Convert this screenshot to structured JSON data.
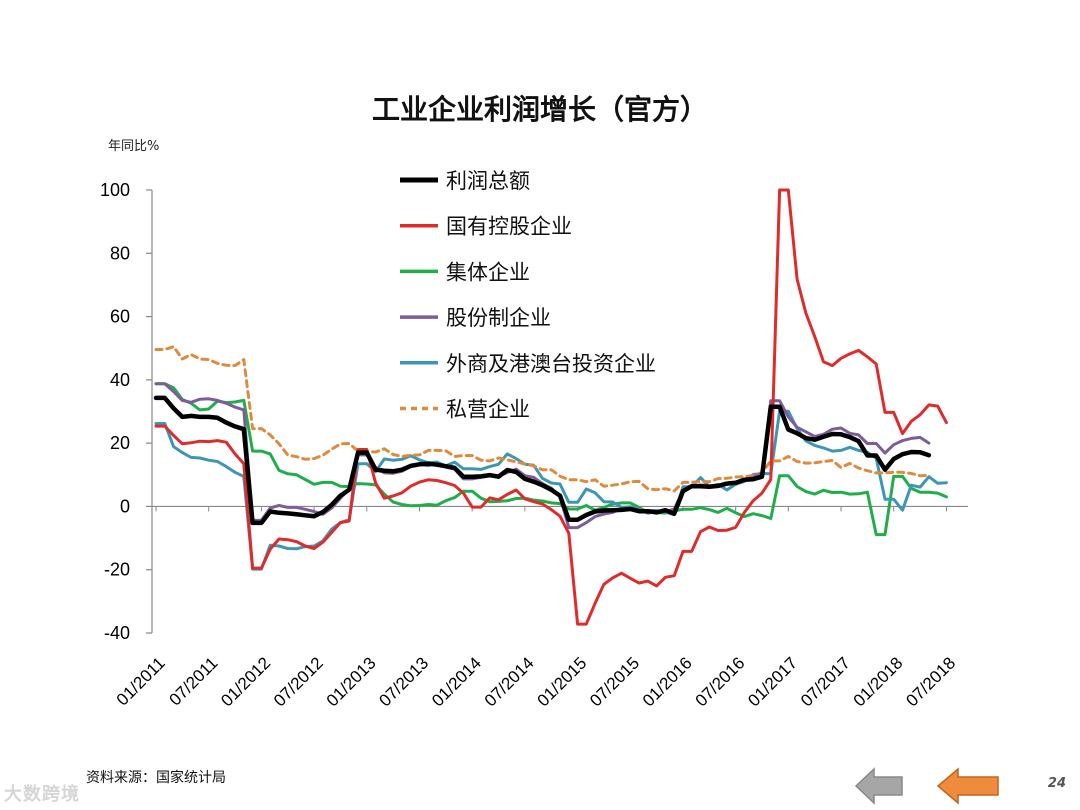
{
  "title": "工业企业利润增长（官方）",
  "unit_label": "年同比%",
  "source": "资料来源：国家统计局",
  "watermark": "大数跨境",
  "page_number": "24",
  "chart_data": {
    "type": "line",
    "title": "工业企业利润增长（官方）",
    "ylabel": "年同比%",
    "ylim": [
      -40,
      100
    ],
    "yticks": [
      -40,
      -20,
      0,
      20,
      40,
      60,
      80,
      100
    ],
    "x_labels": [
      "01/2011",
      "07/2011",
      "01/2012",
      "07/2012",
      "01/2013",
      "07/2013",
      "01/2014",
      "07/2014",
      "01/2015",
      "07/2015",
      "01/2016",
      "07/2016",
      "01/2017",
      "07/2017",
      "01/2018",
      "07/2018"
    ],
    "x_start": "01/2011",
    "x_end": "10/2018",
    "grid": false,
    "legend_position": "top-center",
    "series": [
      {
        "name": "利润总额",
        "color": "#000000",
        "dash": false,
        "values": [
          34.3,
          34.3,
          31,
          28.3,
          28.6,
          28.3,
          28.3,
          28,
          26.5,
          25.3,
          24.4,
          -5.2,
          -5.2,
          -1.6,
          -2,
          -2.2,
          -2.5,
          -2.8,
          -3.1,
          -1.8,
          0.5,
          3.4,
          5.3,
          17,
          17,
          11.6,
          11.3,
          11.1,
          11.6,
          12.8,
          13.3,
          13.5,
          13.2,
          12.7,
          12.2,
          9.4,
          9.4,
          9.5,
          9.9,
          9.4,
          11.5,
          10.9,
          8.7,
          7.8,
          6.7,
          5.3,
          3.4,
          -4.2,
          -4.2,
          -2.7,
          -1.6,
          -1.3,
          -1.2,
          -1.1,
          -0.8,
          -1.5,
          -1.5,
          -1.9,
          -1.2,
          -2.3,
          4.8,
          6.4,
          6.4,
          6.2,
          6.5,
          7.2,
          7.5,
          8.4,
          8.6,
          9.4,
          31.5,
          31.5,
          24.3,
          23.1,
          21.6,
          21.1,
          22,
          22.9,
          22.8,
          21.9,
          20.6,
          16.1,
          16.1,
          11.6,
          15,
          16.5,
          17.2,
          17.1,
          16.2
        ]
      },
      {
        "name": "国有控股企业",
        "color": "#e02b2b",
        "dash": false,
        "values": [
          25.4,
          25.4,
          22.4,
          19.8,
          20.1,
          20.6,
          20.5,
          20.8,
          20.3,
          16.6,
          13.5,
          -19.5,
          -19.5,
          -13.5,
          -10.3,
          -10.5,
          -11.1,
          -12.5,
          -13.3,
          -11.3,
          -8.2,
          -5.1,
          -4.6,
          18,
          18,
          7.4,
          2.6,
          3.3,
          4.3,
          6.4,
          7.7,
          8.4,
          8.2,
          7.5,
          6.6,
          4.2,
          -0.2,
          -0.2,
          2.7,
          2.1,
          3.8,
          5.2,
          2.4,
          1.5,
          0.8,
          -1,
          -3.1,
          -8.5,
          -37.2,
          -37.2,
          -30.6,
          -24.6,
          -22.6,
          -21.1,
          -22.7,
          -24.2,
          -23.6,
          -25.1,
          -22.4,
          -21.9,
          -14.2,
          -14.2,
          -8,
          -6.5,
          -7.6,
          -7.5,
          -6.6,
          -1.9,
          1.8,
          4.2,
          8.5,
          100,
          100,
          71.8,
          61.1,
          53.7,
          45.7,
          44.5,
          46.8,
          48.2,
          49.3,
          47.3,
          45,
          29.7,
          29.7,
          23,
          26.9,
          29,
          32.1,
          31.7,
          26.5
        ]
      },
      {
        "name": "集体企业",
        "color": "#1fae4a",
        "dash": false,
        "values": [
          38.8,
          38.8,
          37.5,
          33.8,
          32.6,
          30.5,
          30.8,
          33.3,
          32.8,
          33,
          33.5,
          17.5,
          17.5,
          16.6,
          11.4,
          10.3,
          10,
          8.5,
          7,
          7.6,
          7.6,
          6.4,
          6.3,
          7.2,
          7.1,
          6.8,
          3.9,
          1.4,
          0.6,
          0.2,
          0.3,
          0.6,
          0.4,
          1.8,
          2.8,
          4.8,
          4.8,
          2.6,
          1.5,
          1.6,
          1.8,
          2.5,
          2.6,
          2,
          1.7,
          1.1,
          0.9,
          -0.8,
          -0.8,
          0.3,
          -1.2,
          -0.3,
          0.7,
          1.1,
          1.1,
          -0.3,
          -1.9,
          -1.9,
          -2.1,
          -1.4,
          -0.9,
          -0.9,
          -0.4,
          -1,
          -1.9,
          -0.6,
          -2,
          -3.2,
          -2.3,
          -2.9,
          -3.8,
          9.7,
          9.7,
          6.3,
          4.7,
          3.9,
          5.1,
          4.4,
          4.5,
          3.9,
          4,
          4.5,
          -8.9,
          -8.9,
          9.5,
          9.5,
          5.7,
          4.5,
          4.5,
          4.2,
          3
        ]
      },
      {
        "name": "股份制企业",
        "color": "#7e5c9c",
        "dash": false,
        "values": [
          38.8,
          38.8,
          36.3,
          33.5,
          32.9,
          33.9,
          34,
          33.5,
          32.6,
          31.4,
          30.5,
          -4.4,
          -4.4,
          -0.5,
          0.3,
          -0.3,
          -0.3,
          -0.9,
          -1.6,
          -2.5,
          -0.5,
          2.6,
          5.5,
          16.3,
          16.3,
          12.3,
          10.6,
          10.5,
          11.1,
          12.7,
          13.3,
          12.9,
          13.6,
          12.4,
          11.8,
          8.7,
          8.7,
          9.2,
          9.7,
          9.5,
          10.7,
          11.8,
          9.7,
          9.2,
          7.2,
          5.8,
          3.1,
          -6.7,
          -6.7,
          -5.1,
          -3.2,
          -2.4,
          -1.9,
          -0.7,
          -0.7,
          -1.1,
          -2.1,
          -1.6,
          -1.5,
          -0.9,
          5.1,
          6.2,
          6.8,
          6.5,
          6.6,
          7.1,
          7.7,
          8.4,
          9.2,
          10.4,
          33.4,
          33.4,
          28.3,
          25,
          23.6,
          22.1,
          22.8,
          24.4,
          24.8,
          23.1,
          22.6,
          19.9,
          19.9,
          16.9,
          19.5,
          20.8,
          21.5,
          21.8,
          20
        ]
      },
      {
        "name": "外商及港澳台投资企业",
        "color": "#3b97b5",
        "dash": false,
        "values": [
          26.2,
          26.2,
          18.9,
          17,
          15.5,
          15.3,
          14.6,
          14.2,
          12.6,
          10.8,
          9.5,
          -19.8,
          -19.8,
          -12.3,
          -12.5,
          -13.3,
          -13.4,
          -12.7,
          -12.5,
          -10.9,
          -7.2,
          -5.1,
          -4.2,
          13.5,
          13.5,
          11,
          15,
          14.6,
          14.9,
          16,
          14.7,
          13.8,
          14,
          12.8,
          14,
          11.9,
          11.9,
          11.7,
          12.6,
          13.3,
          16.6,
          15.1,
          13.3,
          13,
          8.9,
          7.4,
          7.1,
          1.3,
          1.3,
          5.5,
          4.3,
          1.5,
          1.4,
          -0.3,
          -0.1,
          -1,
          -1.4,
          -1.3,
          -1.8,
          -2.6,
          6.2,
          6.2,
          9.1,
          6.3,
          7,
          5.2,
          7,
          7.9,
          10.1,
          10.4,
          10.3,
          30.1,
          30.1,
          24.6,
          20.7,
          19.3,
          18.5,
          17.5,
          17.7,
          18.7,
          17.7,
          17.1,
          15.2,
          2.3,
          2.3,
          -1.2,
          6.7,
          6.1,
          9.4,
          7.3,
          7.5
        ]
      },
      {
        "name": "私营企业",
        "color": "#e08a3c",
        "dash": true,
        "values": [
          49.6,
          49.6,
          50.5,
          46.6,
          48,
          46.6,
          46.4,
          45.2,
          44.6,
          44.5,
          46.4,
          24.6,
          24.6,
          22.6,
          19.8,
          16.3,
          15.7,
          14.9,
          15.1,
          16.2,
          18.1,
          19.8,
          19.9,
          17.5,
          17.5,
          17.2,
          18.2,
          16.4,
          15.8,
          16.2,
          16.3,
          17.7,
          17.7,
          17.6,
          15.8,
          16.1,
          16.1,
          14.6,
          14.4,
          15.3,
          14.7,
          14.1,
          13.4,
          12.8,
          11.6,
          11.6,
          9.6,
          8.4,
          8.4,
          7.8,
          8.4,
          6.4,
          6.7,
          7.1,
          7.8,
          7.9,
          5.6,
          5.3,
          5.6,
          4.9,
          7.6,
          7.6,
          7.9,
          7.8,
          8.8,
          8.9,
          9.3,
          9.4,
          9.8,
          10.7,
          14.4,
          14.4,
          15.8,
          14.2,
          13.7,
          13.8,
          14.2,
          14.5,
          12.3,
          13.6,
          12.1,
          11.3,
          10.6,
          10.6,
          10.8,
          10.8,
          10.4,
          9.7,
          9.8
        ]
      }
    ]
  },
  "nav": {
    "prev_icon": "arrow-left-icon",
    "next_icon": "arrow-left-icon",
    "prev_color": "#a6a6a6",
    "next_color": "#f08a3c"
  }
}
